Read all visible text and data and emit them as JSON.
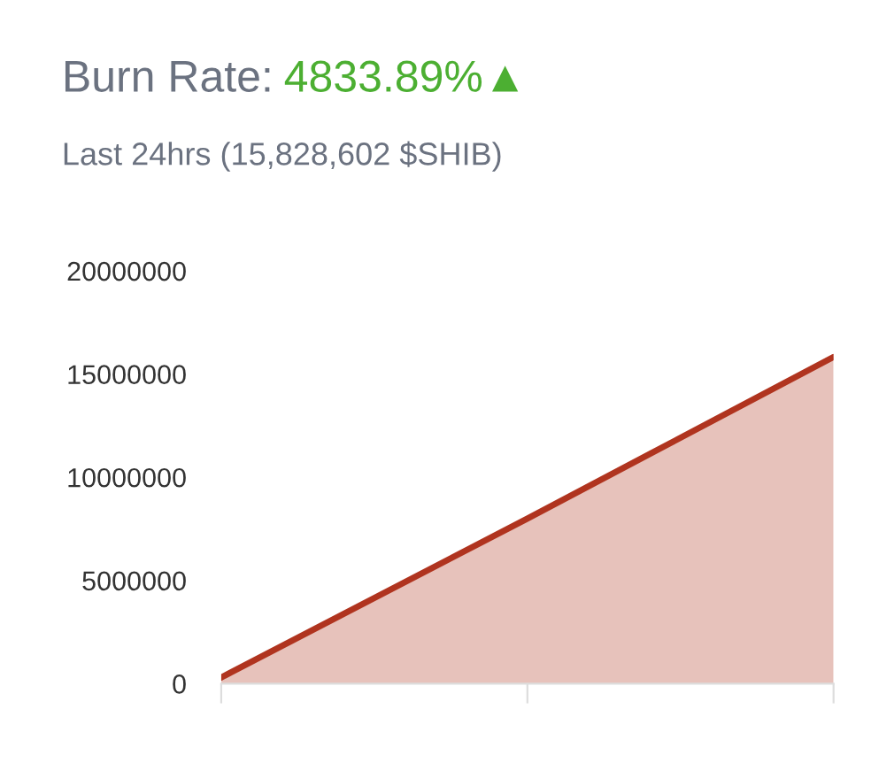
{
  "chart_data": {
    "type": "area",
    "title": "Burn Rate: 4833.89%▲",
    "subtitle": "Last 24hrs (15,828,602 $SHIB)",
    "categories": [
      null,
      null,
      null
    ],
    "series": [
      {
        "color": "#b0341f",
        "values": [
          300000,
          8000000,
          15828602
        ]
      }
    ],
    "ylim": [
      0,
      20000000
    ],
    "yticks": [
      0,
      5000000,
      10000000,
      15000000,
      20000000
    ],
    "grid": false,
    "legend": false
  }
}
